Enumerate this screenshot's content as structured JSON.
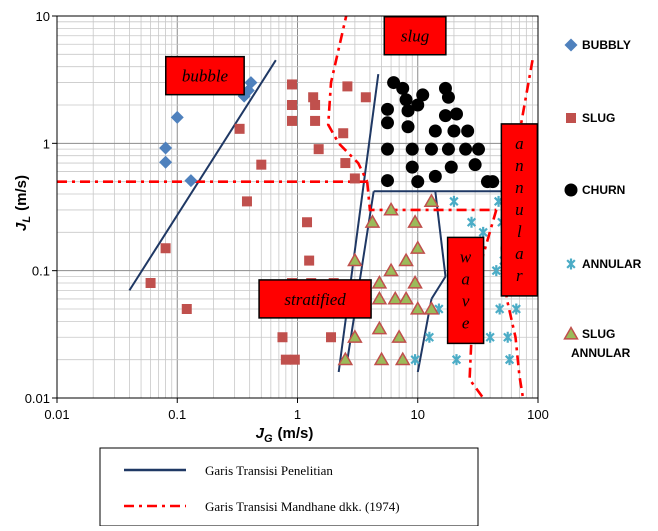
{
  "chart_data": {
    "type": "scatter",
    "title": "",
    "xlabel": {
      "main": "J",
      "sub": "G",
      "unit": "(m/s)"
    },
    "ylabel": {
      "main": "J",
      "sub": "L",
      "unit": "(m/s)"
    },
    "xscale": "log",
    "yscale": "log",
    "xlim": [
      0.01,
      100
    ],
    "ylim": [
      0.01,
      10
    ],
    "x_ticks": [
      "0.01",
      "0.1",
      "1",
      "10",
      "100"
    ],
    "y_ticks": [
      "0.01",
      "0.1",
      "1",
      "10"
    ],
    "grid": true,
    "legend_position": "right",
    "series": [
      {
        "name": "BUBBLY",
        "marker": "diamond",
        "color": "#4f81bd",
        "points": [
          [
            0.08,
            0.92
          ],
          [
            0.08,
            0.71
          ],
          [
            0.1,
            1.6
          ],
          [
            0.13,
            0.51
          ],
          [
            0.36,
            2.35
          ],
          [
            0.39,
            2.6
          ],
          [
            0.41,
            3.0
          ]
        ]
      },
      {
        "name": "SLUG",
        "marker": "square",
        "color": "#c0504d",
        "points": [
          [
            0.06,
            0.08
          ],
          [
            0.08,
            0.15
          ],
          [
            0.12,
            0.05
          ],
          [
            0.33,
            1.3
          ],
          [
            0.38,
            0.35
          ],
          [
            0.5,
            0.68
          ],
          [
            0.75,
            0.03
          ],
          [
            0.8,
            0.02
          ],
          [
            0.85,
            0.05
          ],
          [
            0.9,
            2.9
          ],
          [
            0.9,
            2.0
          ],
          [
            0.9,
            1.5
          ],
          [
            0.9,
            0.08
          ],
          [
            0.95,
            0.02
          ],
          [
            1.2,
            0.24
          ],
          [
            1.25,
            0.12
          ],
          [
            1.3,
            0.08
          ],
          [
            1.3,
            0.05
          ],
          [
            1.35,
            2.3
          ],
          [
            1.4,
            2.0
          ],
          [
            1.4,
            1.5
          ],
          [
            1.5,
            0.9
          ],
          [
            1.9,
            0.03
          ],
          [
            2.0,
            0.08
          ],
          [
            2.4,
            1.2
          ],
          [
            2.5,
            0.7
          ],
          [
            2.6,
            2.8
          ],
          [
            3.0,
            0.53
          ],
          [
            3.7,
            2.3
          ]
        ]
      },
      {
        "name": "CHURN",
        "marker": "circle",
        "color": "#000000",
        "points": [
          [
            5.6,
            1.85
          ],
          [
            5.6,
            1.45
          ],
          [
            5.6,
            0.9
          ],
          [
            5.6,
            0.51
          ],
          [
            6.3,
            3.0
          ],
          [
            7.5,
            2.7
          ],
          [
            8.0,
            2.2
          ],
          [
            8.3,
            1.8
          ],
          [
            8.3,
            1.35
          ],
          [
            9.0,
            0.9
          ],
          [
            9.0,
            0.65
          ],
          [
            10.0,
            0.5
          ],
          [
            10.0,
            2.0
          ],
          [
            11.0,
            2.4
          ],
          [
            13.0,
            0.9
          ],
          [
            14.0,
            0.55
          ],
          [
            14.0,
            1.25
          ],
          [
            17.0,
            2.7
          ],
          [
            17.0,
            1.65
          ],
          [
            18.0,
            2.3
          ],
          [
            18.0,
            0.9
          ],
          [
            19.0,
            0.65
          ],
          [
            20.0,
            1.25
          ],
          [
            21.0,
            1.7
          ],
          [
            25.0,
            0.9
          ],
          [
            26.0,
            1.25
          ],
          [
            30.0,
            0.68
          ],
          [
            32.0,
            0.9
          ],
          [
            38.0,
            0.5
          ],
          [
            42.0,
            0.5
          ]
        ]
      },
      {
        "name": "ANNULAR",
        "marker": "star",
        "color": "#4bacc6",
        "points": [
          [
            9.5,
            0.02
          ],
          [
            12.5,
            0.03
          ],
          [
            15.0,
            0.05
          ],
          [
            20.0,
            0.35
          ],
          [
            20.0,
            0.08
          ],
          [
            21.0,
            0.02
          ],
          [
            25.0,
            0.12
          ],
          [
            25.0,
            0.05
          ],
          [
            28.0,
            0.24
          ],
          [
            30.0,
            0.03
          ],
          [
            32.0,
            0.08
          ],
          [
            35.0,
            0.2
          ],
          [
            40.0,
            0.03
          ],
          [
            45.0,
            0.1
          ],
          [
            47.0,
            0.35
          ],
          [
            48.0,
            0.05
          ],
          [
            50.0,
            0.24
          ],
          [
            52.0,
            0.12
          ],
          [
            55.0,
            0.35
          ],
          [
            56.0,
            0.03
          ],
          [
            58.0,
            0.15
          ],
          [
            58.0,
            0.02
          ],
          [
            60.0,
            0.24
          ],
          [
            65.0,
            0.08
          ],
          [
            66.0,
            0.05
          ]
        ]
      },
      {
        "name": "SLUG ANNULAR",
        "marker": "triangle",
        "color": "#9bbb59",
        "edge_color": "#c0504d",
        "points": [
          [
            2.5,
            0.02
          ],
          [
            3.0,
            0.12
          ],
          [
            3.0,
            0.05
          ],
          [
            3.0,
            0.03
          ],
          [
            4.2,
            0.24
          ],
          [
            4.8,
            0.08
          ],
          [
            4.8,
            0.06
          ],
          [
            4.8,
            0.035
          ],
          [
            5.0,
            0.02
          ],
          [
            6.0,
            0.3
          ],
          [
            6.0,
            0.1
          ],
          [
            6.5,
            0.06
          ],
          [
            7.0,
            0.03
          ],
          [
            7.5,
            0.02
          ],
          [
            8.0,
            0.12
          ],
          [
            8.0,
            0.06
          ],
          [
            9.5,
            0.24
          ],
          [
            9.5,
            0.08
          ],
          [
            10.0,
            0.15
          ],
          [
            10.0,
            0.05
          ],
          [
            13.0,
            0.35
          ],
          [
            13.0,
            0.05
          ]
        ]
      }
    ],
    "transition_lines": [
      {
        "name": "Garis Transisi Penelitian",
        "style": "solid",
        "color": "#1f3864",
        "segments": [
          [
            [
              0.04,
              0.07
            ],
            [
              0.66,
              4.5
            ]
          ],
          [
            [
              2.2,
              0.016
            ],
            [
              4.7,
              3.5
            ]
          ],
          [
            [
              2.6,
              0.02
            ],
            [
              4.3,
              0.42
            ]
          ],
          [
            [
              4.3,
              0.42
            ],
            [
              50.0,
              0.42
            ]
          ],
          [
            [
              14.0,
              0.42
            ],
            [
              17.0,
              0.09
            ]
          ],
          [
            [
              17.0,
              0.09
            ],
            [
              13.0,
              0.06
            ]
          ],
          [
            [
              13.0,
              0.06
            ],
            [
              10.0,
              0.016
            ]
          ]
        ]
      },
      {
        "name": "Garis Transisi Mandhane dkk. (1974)",
        "style": "dash-dot",
        "color": "#ff0000",
        "segments": [
          [
            [
              0.01,
              0.5
            ],
            [
              4.0,
              0.5
            ]
          ],
          [
            [
              2.6,
              11.0
            ],
            [
              1.9,
              3.0
            ],
            [
              1.8,
              1.4
            ],
            [
              2.2,
              1.0
            ],
            [
              3.2,
              0.7
            ],
            [
              3.8,
              0.5
            ]
          ],
          [
            [
              3.8,
              0.5
            ],
            [
              4.0,
              0.3
            ],
            [
              45.0,
              0.3
            ]
          ],
          [
            [
              45.0,
              0.3
            ],
            [
              30.0,
              0.08
            ],
            [
              28.0,
              0.03
            ],
            [
              27.0,
              0.014
            ],
            [
              35.0,
              0.01
            ]
          ],
          [
            [
              90.0,
              4.5
            ],
            [
              70.0,
              1.2
            ],
            [
              60.0,
              0.4
            ],
            [
              55.0,
              0.25
            ],
            [
              50.0,
              0.15
            ],
            [
              55.0,
              0.06
            ],
            [
              65.0,
              0.03
            ],
            [
              70.0,
              0.015
            ],
            [
              75.0,
              0.01
            ]
          ]
        ]
      }
    ],
    "region_labels": [
      {
        "text": "bubble",
        "x": 0.17,
        "y": 3.4
      },
      {
        "text": "slug",
        "x": 9.5,
        "y": 7.0
      },
      {
        "text": "stratified",
        "x": 1.4,
        "y": 0.06
      },
      {
        "text": "w\na\nv\ne",
        "x": 25.0,
        "y": 0.07
      },
      {
        "text": "a\nn\nn\nu\nl\na\nr",
        "x": 70.0,
        "y": 0.3
      }
    ]
  },
  "legend_right": [
    "BUBBLY",
    "SLUG",
    "CHURN",
    "ANNULAR",
    "SLUG\nANNULAR"
  ],
  "legend_bottom": [
    "Garis Transisi Penelitian",
    "Garis Transisi Mandhane dkk. (1974)"
  ]
}
